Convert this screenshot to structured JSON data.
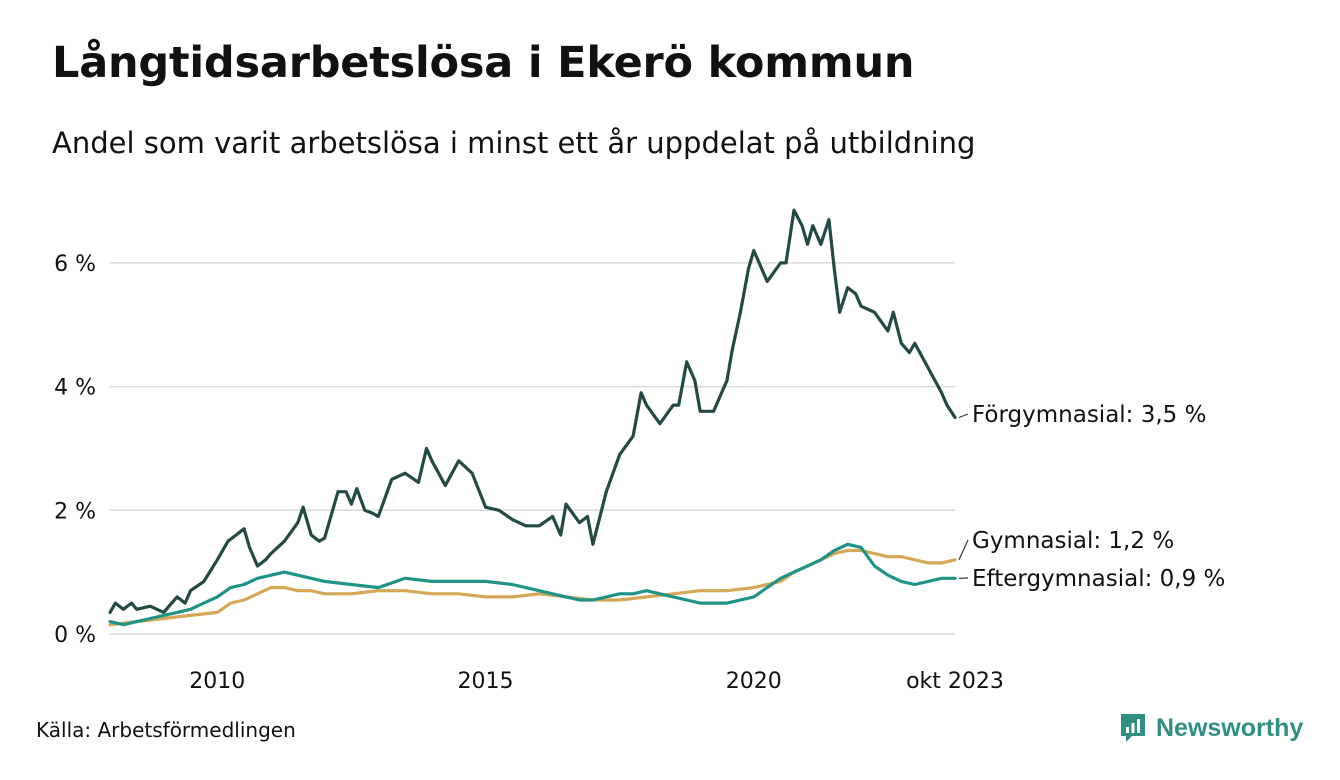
{
  "title": "Långtidsarbetslösa i Ekerö kommun",
  "subtitle": "Andel som varit arbetslösa i minst ett år uppdelat på utbildning",
  "source": "Källa: Arbetsförmedlingen",
  "brand": "Newsworthy",
  "colors": {
    "accent": "#2f8f80"
  },
  "chart_data": {
    "type": "line",
    "title": "Långtidsarbetslösa i Ekerö kommun",
    "xlabel": "",
    "ylabel": "",
    "xlim": [
      2008.0,
      2023.75
    ],
    "ylim": [
      0,
      7
    ],
    "grid": true,
    "y_ticks": [
      {
        "value": 0,
        "label": "0 %"
      },
      {
        "value": 2,
        "label": "2 %"
      },
      {
        "value": 4,
        "label": "4 %"
      },
      {
        "value": 6,
        "label": "6 %"
      }
    ],
    "x_ticks": [
      {
        "value": 2010,
        "label": "2010"
      },
      {
        "value": 2015,
        "label": "2015"
      },
      {
        "value": 2020,
        "label": "2020"
      },
      {
        "value": 2023.75,
        "label": "okt 2023"
      }
    ],
    "series": [
      {
        "name": "Förgymnasial",
        "end_label": "Förgymnasial: 3,5 %",
        "color": "#244a45",
        "x": [
          2008.0,
          2008.1,
          2008.25,
          2008.4,
          2008.5,
          2008.75,
          2009.0,
          2009.1,
          2009.25,
          2009.4,
          2009.5,
          2009.75,
          2010.0,
          2010.2,
          2010.35,
          2010.5,
          2010.6,
          2010.75,
          2010.9,
          2011.0,
          2011.25,
          2011.5,
          2011.6,
          2011.75,
          2011.9,
          2012.0,
          2012.25,
          2012.4,
          2012.5,
          2012.6,
          2012.75,
          2012.9,
          2013.0,
          2013.25,
          2013.5,
          2013.75,
          2013.9,
          2014.0,
          2014.25,
          2014.5,
          2014.75,
          2015.0,
          2015.25,
          2015.5,
          2015.75,
          2016.0,
          2016.25,
          2016.4,
          2016.5,
          2016.75,
          2016.9,
          2017.0,
          2017.25,
          2017.5,
          2017.75,
          2017.9,
          2018.0,
          2018.25,
          2018.5,
          2018.6,
          2018.75,
          2018.9,
          2019.0,
          2019.25,
          2019.5,
          2019.6,
          2019.75,
          2019.9,
          2020.0,
          2020.25,
          2020.5,
          2020.6,
          2020.75,
          2020.9,
          2021.0,
          2021.1,
          2021.25,
          2021.4,
          2021.5,
          2021.6,
          2021.75,
          2021.9,
          2022.0,
          2022.25,
          2022.5,
          2022.6,
          2022.75,
          2022.9,
          2023.0,
          2023.25,
          2023.5,
          2023.6,
          2023.75
        ],
        "values": [
          0.35,
          0.5,
          0.4,
          0.5,
          0.4,
          0.45,
          0.35,
          0.45,
          0.6,
          0.5,
          0.7,
          0.85,
          1.2,
          1.5,
          1.6,
          1.7,
          1.4,
          1.1,
          1.2,
          1.3,
          1.5,
          1.8,
          2.05,
          1.6,
          1.5,
          1.55,
          2.3,
          2.3,
          2.1,
          2.35,
          2.0,
          1.95,
          1.9,
          2.5,
          2.6,
          2.45,
          3.0,
          2.8,
          2.4,
          2.8,
          2.6,
          2.05,
          2.0,
          1.85,
          1.75,
          1.75,
          1.9,
          1.6,
          2.1,
          1.8,
          1.9,
          1.45,
          2.3,
          2.9,
          3.2,
          3.9,
          3.7,
          3.4,
          3.7,
          3.7,
          4.4,
          4.1,
          3.6,
          3.6,
          4.1,
          4.6,
          5.2,
          5.9,
          6.2,
          5.7,
          6.0,
          6.0,
          6.85,
          6.6,
          6.3,
          6.6,
          6.3,
          6.7,
          5.9,
          5.2,
          5.6,
          5.5,
          5.3,
          5.2,
          4.9,
          5.2,
          4.7,
          4.55,
          4.7,
          4.3,
          3.9,
          3.7,
          3.5
        ]
      },
      {
        "name": "Gymnasial",
        "end_label": "Gymnasial: 1,2 %",
        "color": "#d4a857",
        "x": [
          2008.0,
          2008.5,
          2009.0,
          2009.5,
          2010.0,
          2010.25,
          2010.5,
          2010.75,
          2011.0,
          2011.25,
          2011.5,
          2011.75,
          2012.0,
          2012.5,
          2013.0,
          2013.5,
          2014.0,
          2014.5,
          2015.0,
          2015.5,
          2016.0,
          2016.5,
          2017.0,
          2017.5,
          2018.0,
          2018.5,
          2019.0,
          2019.5,
          2020.0,
          2020.5,
          2020.75,
          2021.0,
          2021.25,
          2021.5,
          2021.75,
          2022.0,
          2022.25,
          2022.5,
          2022.75,
          2023.0,
          2023.25,
          2023.5,
          2023.75
        ],
        "values": [
          0.15,
          0.2,
          0.25,
          0.3,
          0.35,
          0.5,
          0.55,
          0.65,
          0.75,
          0.75,
          0.7,
          0.7,
          0.65,
          0.65,
          0.7,
          0.7,
          0.65,
          0.65,
          0.6,
          0.6,
          0.65,
          0.6,
          0.55,
          0.55,
          0.6,
          0.65,
          0.7,
          0.7,
          0.75,
          0.85,
          1.0,
          1.1,
          1.2,
          1.3,
          1.35,
          1.35,
          1.3,
          1.25,
          1.25,
          1.2,
          1.15,
          1.15,
          1.2
        ]
      },
      {
        "name": "Eftergymnasial",
        "end_label": "Eftergymnasial: 0,9 %",
        "color": "#1f9486",
        "x": [
          2008.0,
          2008.25,
          2008.5,
          2008.75,
          2009.0,
          2009.25,
          2009.5,
          2009.75,
          2010.0,
          2010.25,
          2010.5,
          2010.75,
          2011.0,
          2011.25,
          2011.5,
          2011.75,
          2012.0,
          2012.5,
          2013.0,
          2013.5,
          2014.0,
          2014.5,
          2015.0,
          2015.5,
          2016.0,
          2016.25,
          2016.5,
          2016.75,
          2017.0,
          2017.25,
          2017.5,
          2017.75,
          2018.0,
          2018.25,
          2018.5,
          2018.75,
          2019.0,
          2019.5,
          2020.0,
          2020.25,
          2020.5,
          2020.75,
          2021.0,
          2021.25,
          2021.5,
          2021.75,
          2022.0,
          2022.25,
          2022.5,
          2022.75,
          2023.0,
          2023.25,
          2023.5,
          2023.75
        ],
        "values": [
          0.2,
          0.15,
          0.2,
          0.25,
          0.3,
          0.35,
          0.4,
          0.5,
          0.6,
          0.75,
          0.8,
          0.9,
          0.95,
          1.0,
          0.95,
          0.9,
          0.85,
          0.8,
          0.75,
          0.9,
          0.85,
          0.85,
          0.85,
          0.8,
          0.7,
          0.65,
          0.6,
          0.55,
          0.55,
          0.6,
          0.65,
          0.65,
          0.7,
          0.65,
          0.6,
          0.55,
          0.5,
          0.5,
          0.6,
          0.75,
          0.9,
          1.0,
          1.1,
          1.2,
          1.35,
          1.45,
          1.4,
          1.1,
          0.95,
          0.85,
          0.8,
          0.85,
          0.9,
          0.9
        ]
      }
    ]
  }
}
